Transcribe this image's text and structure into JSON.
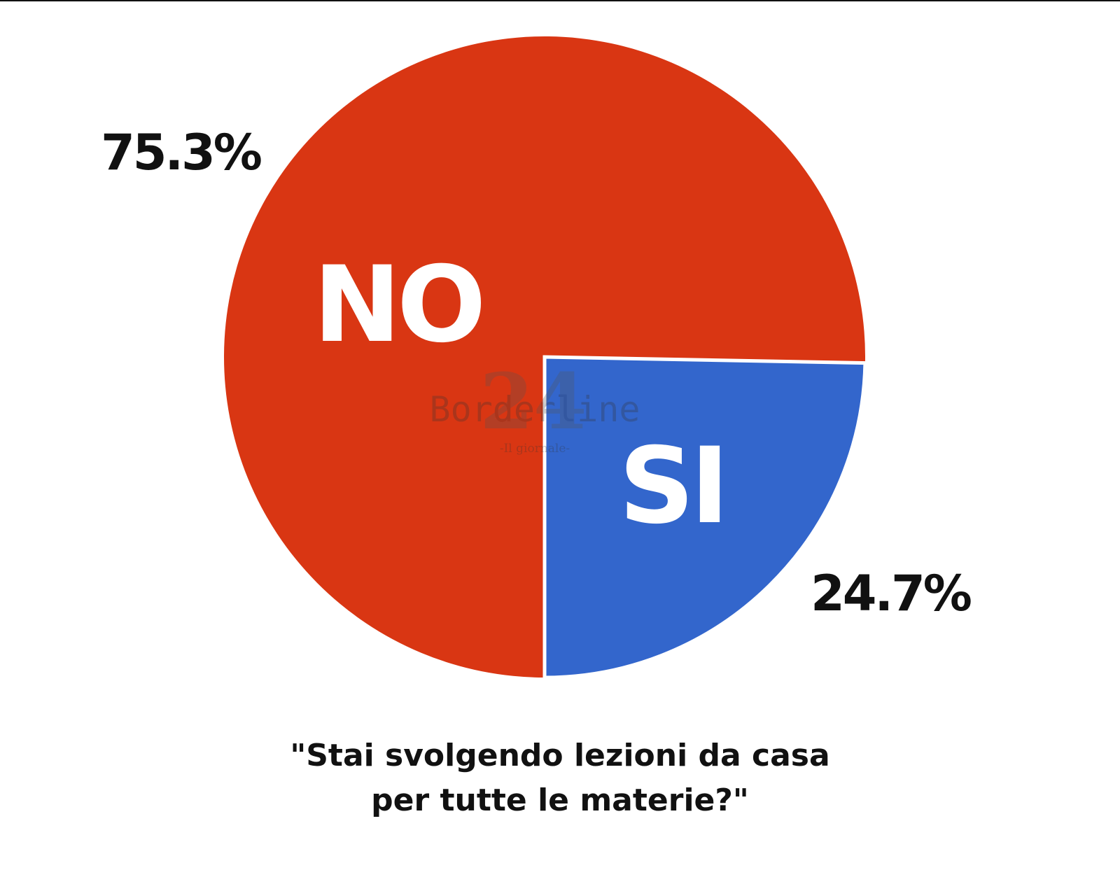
{
  "chart_data": {
    "type": "pie",
    "title": "",
    "question": {
      "line1": "\"Stai svolgendo lezioni da casa",
      "line2": "per tutte le materie?\""
    },
    "slices": [
      {
        "label": "NO",
        "value": 75.3,
        "value_label": "75.3%",
        "color": "#d93613"
      },
      {
        "label": "SI",
        "value": 24.7,
        "value_label": "24.7%",
        "color": "#3366cc"
      }
    ],
    "start": "bottom (6 o'clock), SI slice extends counter-clockwise to 3 o'clock",
    "legend": "none",
    "watermark": {
      "text": "Borderline",
      "number": "24",
      "tagline": "-Il giornale-"
    }
  }
}
